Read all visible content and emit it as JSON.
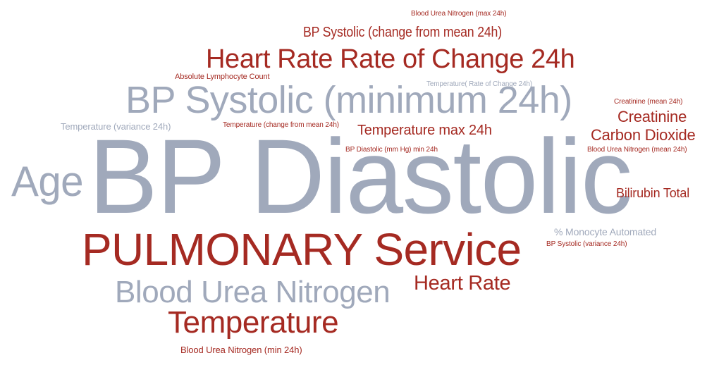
{
  "colors": {
    "accent": "#a52a22",
    "muted": "#a0a9bb",
    "background": "#ffffff"
  },
  "words": [
    {
      "id": "w01",
      "text": "Blood Urea Nitrogen (max 24h)",
      "tone": "accent"
    },
    {
      "id": "w02",
      "text": "BP Systolic (change from mean 24h)",
      "tone": "accent"
    },
    {
      "id": "w03",
      "text": "Heart Rate Rate of Change 24h",
      "tone": "accent"
    },
    {
      "id": "w04",
      "text": "Absolute Lymphocyte Count",
      "tone": "accent"
    },
    {
      "id": "w05",
      "text": "Temperature( Rate of Change 24h)",
      "tone": "muted"
    },
    {
      "id": "w06",
      "text": "BP Systolic (minimum 24h)",
      "tone": "muted"
    },
    {
      "id": "w07",
      "text": "Creatinine (mean 24h)",
      "tone": "accent"
    },
    {
      "id": "w08",
      "text": "Creatinine",
      "tone": "accent"
    },
    {
      "id": "w09",
      "text": "Temperature (variance 24h)",
      "tone": "muted"
    },
    {
      "id": "w10",
      "text": "Temperature (change from mean 24h)",
      "tone": "accent"
    },
    {
      "id": "w11",
      "text": "Temperature max 24h",
      "tone": "accent"
    },
    {
      "id": "w12",
      "text": "Carbon Dioxide",
      "tone": "accent"
    },
    {
      "id": "w13",
      "text": "BP Diastolic (mm Hg) min 24h",
      "tone": "accent"
    },
    {
      "id": "w14",
      "text": "Blood Urea Nitrogen (mean 24h)",
      "tone": "accent"
    },
    {
      "id": "w15",
      "text": "BP Diastolic",
      "tone": "muted"
    },
    {
      "id": "w16",
      "text": "Age",
      "tone": "muted"
    },
    {
      "id": "w17",
      "text": "Bilirubin Total",
      "tone": "accent"
    },
    {
      "id": "w18",
      "text": "% Monocyte Automated",
      "tone": "muted"
    },
    {
      "id": "w19",
      "text": "BP Systolic (variance 24h)",
      "tone": "accent"
    },
    {
      "id": "w20",
      "text": "PULMONARY Service",
      "tone": "accent"
    },
    {
      "id": "w21",
      "text": "Blood Urea Nitrogen",
      "tone": "muted"
    },
    {
      "id": "w22",
      "text": "Heart Rate",
      "tone": "accent"
    },
    {
      "id": "w23",
      "text": "Temperature",
      "tone": "accent"
    },
    {
      "id": "w24",
      "text": "Blood Urea Nitrogen (min 24h)",
      "tone": "accent"
    }
  ]
}
